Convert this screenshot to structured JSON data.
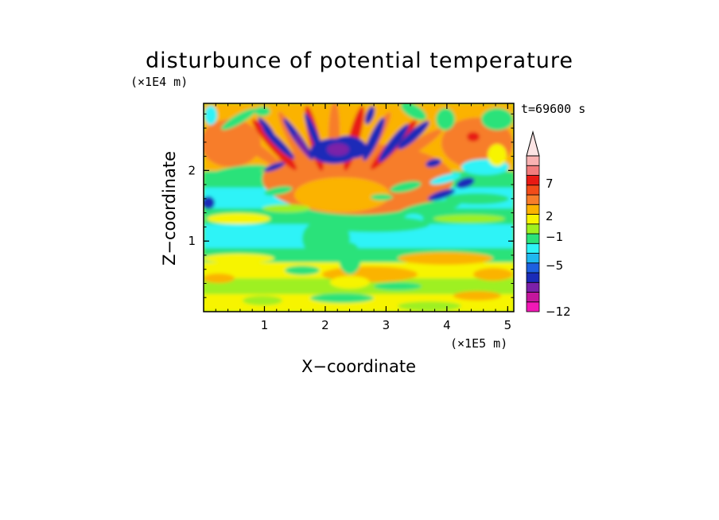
{
  "chart_data": {
    "type": "heatmap",
    "title": "disturbunce of potential temperature",
    "xlabel": "X−coordinate",
    "ylabel": "Z−coordinate",
    "x_unit": "(×1E5 m)",
    "y_unit": "(×1E4 m)",
    "time_label": "t=69600 s",
    "x_ticks": [
      "1",
      "2",
      "3",
      "4",
      "5"
    ],
    "y_ticks": [
      "1",
      "2"
    ],
    "xlim": [
      0,
      5.1
    ],
    "ylim": [
      0,
      2.95
    ],
    "colorbar": {
      "tick_labels": [
        "7",
        "2",
        "−1",
        "−5",
        "−12"
      ],
      "extend": "max",
      "colors": [
        "#f218b6",
        "#c4169c",
        "#7b20a8",
        "#1a2bb8",
        "#1d60e0",
        "#1fb8f0",
        "#2ef3f7",
        "#2be27a",
        "#9ef020",
        "#f7f400",
        "#fbb300",
        "#f77d2a",
        "#f24c19",
        "#e81a14",
        "#f27c7c",
        "#f8b2b2"
      ]
    }
  }
}
